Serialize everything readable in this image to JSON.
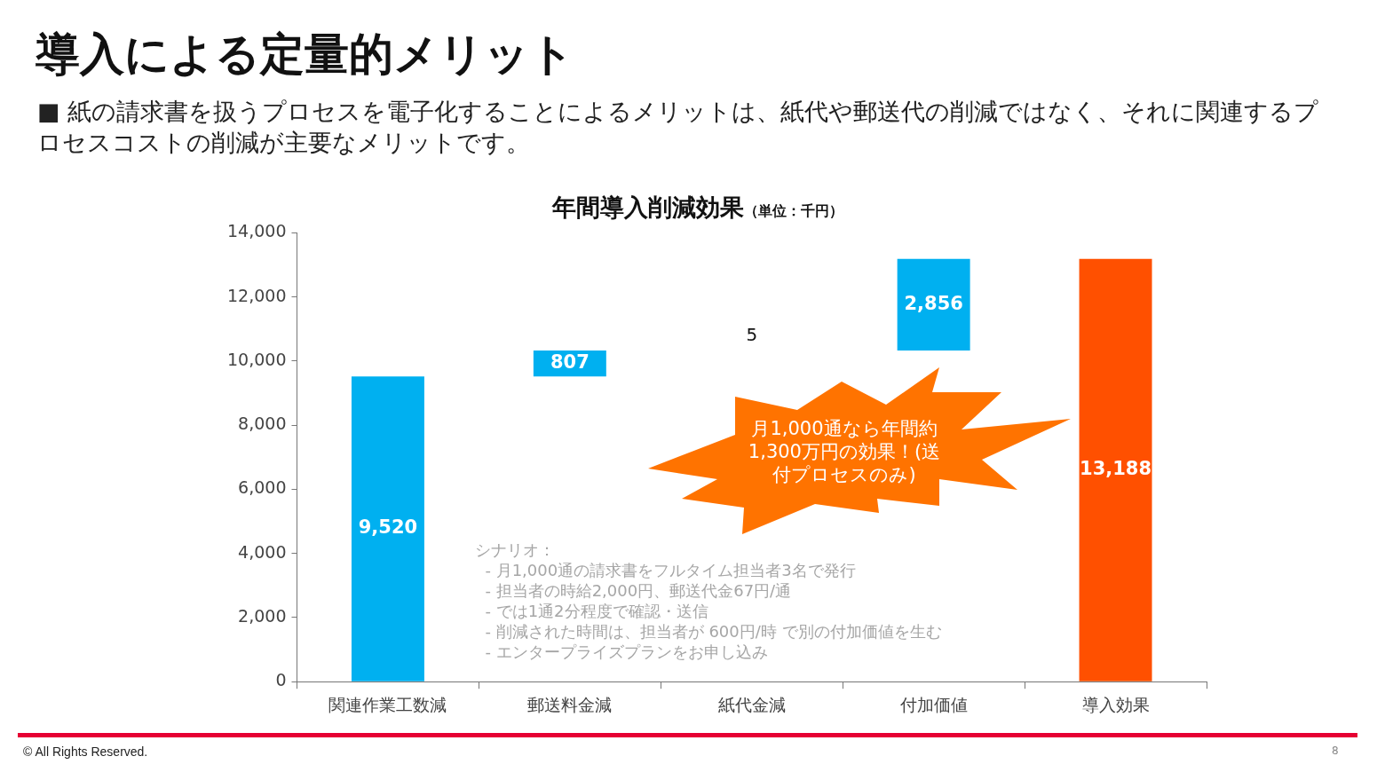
{
  "chart_data": {
    "type": "bar",
    "title": "年間導入削減効果",
    "subtitle": "（単位：千円）",
    "categories": [
      "関連作業工数減",
      "郵送料金減",
      "紙代金減",
      "付加価値",
      "導入効果"
    ],
    "values": [
      9520,
      807,
      5,
      2856,
      13188
    ],
    "base": [
      0,
      9520,
      10327,
      10332,
      0
    ],
    "colors": [
      "#00b0f0",
      "#00b0f0",
      "#00b0f0",
      "#00b0f0",
      "#ff5000"
    ],
    "value_labels": [
      "9,520",
      "807",
      "5",
      "2,856",
      "13,188"
    ],
    "ylim": [
      0,
      14000
    ],
    "yticks": [
      0,
      {
        "value": 2000,
        "label": "2,000"
      },
      {
        "value": 4000,
        "label": "4,000"
      },
      {
        "value": 6000,
        "label": "6,000"
      },
      {
        "value": 8000,
        "label": "8,000"
      },
      {
        "value": 10000,
        "label": "10,000"
      },
      {
        "value": 12000,
        "label": "12,000"
      },
      {
        "value": 14000,
        "label": "14,000"
      }
    ],
    "grid": false,
    "legend": false,
    "annotations": [
      "導入による定量的メリット",
      "■ 紙の請求書を扱うプロセスを電子化することによるメリットは、紙代や郵送代の削減ではなく、それに関連するプロセスコストの削減が主要なメリットです。",
      "月1,000通なら年間約1,300万円の効果！(送付プロセスのみ)",
      "シナリオ：\n  - 月1,000通の請求書をフルタイム担当者3名で発行\n  - 担当者の時給2,000円、郵送代金67円/通\n  - では1通2分程度で確認・送信\n  - 削減された時間は、担当者が 600円/時 で別の付加価値を生む\n  - エンタープライズプランをお申し込み",
      "© All Rights Reserved.",
      "8"
    ]
  }
}
